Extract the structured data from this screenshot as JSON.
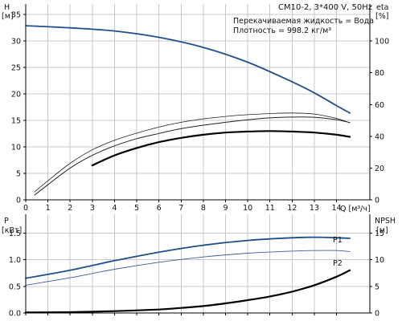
{
  "chart_data": [
    {
      "type": "line",
      "panel": "top",
      "title": "CM10-2, 3*400 V, 50Hz",
      "annotations": [
        "Перекачиваемая жидкость = Вода",
        "Плотность = 998.2 кг/м³"
      ],
      "xlabel": "Q [м³/ч]",
      "xlabel_unit": "Q",
      "xlabel_bracket": "[м³/ч]",
      "ylabel_left": "H",
      "ylabel_left_unit": "[м]",
      "ylabel_right": "eta",
      "ylabel_right_unit": "[%]",
      "xlim": [
        0,
        15.5
      ],
      "ylim_left": [
        0,
        37
      ],
      "ylim_right": [
        0,
        123.3
      ],
      "x_ticks": [
        0,
        1,
        2,
        3,
        4,
        5,
        6,
        7,
        8,
        9,
        10,
        11,
        12,
        13,
        14
      ],
      "y_ticks_left": [
        0,
        5,
        10,
        15,
        20,
        25,
        30,
        35
      ],
      "y_ticks_right": [
        0,
        20,
        40,
        60,
        80,
        100
      ],
      "grid": true,
      "series": [
        {
          "axis": "left",
          "color": "#1f4e8c",
          "x": [
            0,
            2,
            4,
            6,
            8,
            10,
            12,
            13,
            14,
            14.6
          ],
          "y": [
            32.9,
            32.5,
            31.9,
            30.7,
            28.8,
            26.0,
            22.3,
            20.2,
            17.8,
            16.4
          ]
        },
        {
          "axis": "right",
          "color": "#222222",
          "x": [
            0.4,
            1,
            2,
            3,
            4,
            5,
            6,
            7,
            8,
            9,
            10,
            11,
            12,
            13,
            14,
            14.6
          ],
          "y": [
            3,
            9.5,
            20,
            28,
            34,
            38.5,
            41.8,
            44.8,
            47,
            48.8,
            50.4,
            51.6,
            52.1,
            52.0,
            50.5,
            48.6
          ]
        },
        {
          "axis": "right",
          "color": "#222222",
          "x": [
            0.4,
            1,
            2,
            3,
            4,
            5,
            6,
            7,
            8,
            9,
            10,
            11,
            12,
            13,
            14,
            14.6
          ],
          "y": [
            5,
            12,
            23,
            31.5,
            37.5,
            42,
            45.8,
            48.8,
            51,
            52.5,
            53.6,
            54.3,
            54.7,
            54.0,
            51.3,
            48.5
          ]
        },
        {
          "axis": "left",
          "color": "#000000",
          "x": [
            3,
            4,
            5,
            6,
            7,
            8,
            9,
            10,
            11,
            12,
            13,
            14,
            14.6
          ],
          "y": [
            6.5,
            8.4,
            9.8,
            10.9,
            11.7,
            12.3,
            12.7,
            12.9,
            13.0,
            12.9,
            12.7,
            12.3,
            11.9
          ]
        }
      ]
    },
    {
      "type": "line",
      "panel": "bottom",
      "ylabel_left": "P",
      "ylabel_left_unit": "[кВт]",
      "ylabel_right": "NPSH",
      "ylabel_right_unit": "[м]",
      "xlim": [
        0,
        15.5
      ],
      "ylim_left": [
        0,
        1.85
      ],
      "ylim_right": [
        0,
        18.5
      ],
      "y_ticks_left": [
        0.0,
        0.5,
        1.0,
        1.5
      ],
      "y_ticks_left_labels": [
        "0.0",
        "0.5",
        "1.0",
        "1.5"
      ],
      "y_ticks_right": [
        0,
        5,
        10,
        15
      ],
      "grid": true,
      "series": [
        {
          "name": "P1",
          "axis": "left",
          "color": "#1f4e8c",
          "x": [
            0,
            2,
            4,
            6,
            8,
            10,
            12,
            13,
            14,
            14.6
          ],
          "y": [
            0.65,
            0.8,
            0.98,
            1.14,
            1.27,
            1.36,
            1.41,
            1.42,
            1.41,
            1.4
          ]
        },
        {
          "name": "P2",
          "axis": "left",
          "color": "#3c5f96",
          "x": [
            0,
            2,
            4,
            6,
            8,
            10,
            12,
            13,
            14,
            14.6
          ],
          "y": [
            0.52,
            0.66,
            0.82,
            0.95,
            1.05,
            1.12,
            1.16,
            1.17,
            1.17,
            1.15
          ]
        },
        {
          "axis": "right",
          "color": "#000000",
          "x": [
            0,
            2,
            4,
            6,
            7,
            8,
            9,
            10,
            11,
            12,
            13,
            14,
            14.6
          ],
          "y": [
            0.1,
            0.15,
            0.35,
            0.65,
            0.95,
            1.3,
            1.8,
            2.4,
            3.1,
            4.0,
            5.2,
            6.8,
            8.0
          ]
        }
      ]
    }
  ]
}
